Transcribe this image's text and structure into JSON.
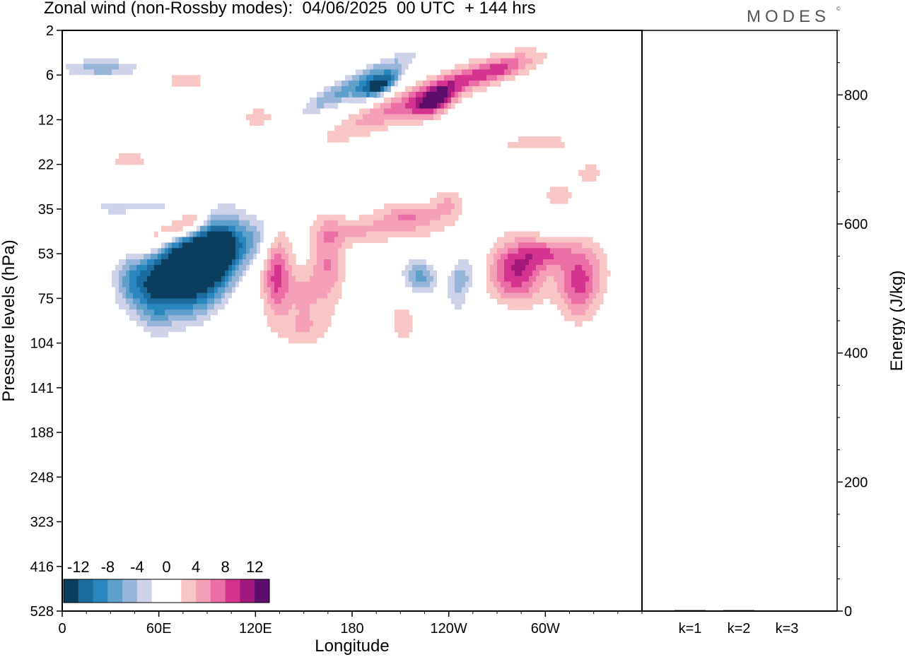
{
  "header": {
    "title": "Zonal wind (non-Rossby modes):  04/06/2025  00 UTC  + 144 hrs",
    "logo": "MODES",
    "logo_mark": "©"
  },
  "chart_data": [
    {
      "type": "heatmap",
      "title": "Zonal wind (non-Rossby modes):  04/06/2025  00 UTC  + 144 hrs",
      "xlabel": "Longitude",
      "ylabel": "Pressure levels (hPa)",
      "x_ticks": [
        "0",
        "60E",
        "120E",
        "180",
        "120W",
        "60W"
      ],
      "y_ticks": [
        "2",
        "6",
        "12",
        "22",
        "35",
        "53",
        "75",
        "104",
        "141",
        "188",
        "248",
        "323",
        "416",
        "528"
      ],
      "colorbar": {
        "labels": [
          "-12",
          "-8",
          "-4",
          "0",
          "4",
          "8",
          "12"
        ],
        "levels": [
          -14,
          -12,
          -10,
          -8,
          -6,
          -4,
          -2,
          2,
          4,
          6,
          8,
          10,
          12,
          14
        ],
        "colors": [
          "#0b3d5e",
          "#1b6b9e",
          "#2a86bf",
          "#5f9fcc",
          "#97b5d8",
          "#cfd3ea",
          "#ffffff",
          "#ffffff",
          "#f9c6c6",
          "#f59fb9",
          "#ec6ea6",
          "#d4348f",
          "#a2187d",
          "#5c0d6b"
        ]
      },
      "features": [
        {
          "lon": 87,
          "lev": 5.35,
          "rl": 25,
          "rv": 1.05,
          "tilt": 0.018,
          "amp": -15
        },
        {
          "lon": 72,
          "lev": 5.25,
          "rl": 22,
          "rv": 0.75,
          "tilt": 0.015,
          "amp": -12
        },
        {
          "lon": 44,
          "lev": 5.55,
          "rl": 14,
          "rv": 0.8,
          "tilt": 0.0,
          "amp": -8
        },
        {
          "lon": 100,
          "lev": 4.95,
          "rl": 12,
          "rv": 0.55,
          "tilt": 0.02,
          "amp": -8
        },
        {
          "lon": 120,
          "lev": 4.7,
          "rl": 10,
          "rv": 0.5,
          "tilt": 0.02,
          "amp": -5
        },
        {
          "lon": 65,
          "lev": 4.5,
          "rl": 14,
          "rv": 0.35,
          "tilt": 0.015,
          "amp": 6
        },
        {
          "lon": 80,
          "lev": 4.3,
          "rl": 10,
          "rv": 0.3,
          "tilt": 0.015,
          "amp": 9
        },
        {
          "lon": 48,
          "lev": 4.85,
          "rl": 10,
          "rv": 0.3,
          "tilt": 0.01,
          "amp": 4
        },
        {
          "lon": 57,
          "lev": 3.95,
          "rl": 25,
          "rv": 0.35,
          "tilt": 0.0,
          "amp": -4
        },
        {
          "lon": 28,
          "lev": 3.95,
          "rl": 14,
          "rv": 0.3,
          "tilt": 0.0,
          "amp": -3.5
        },
        {
          "lon": 58,
          "lev": 6.2,
          "rl": 10,
          "rv": 0.8,
          "tilt": 0.0,
          "amp": -3.5
        },
        {
          "lon": 133,
          "lev": 5.5,
          "rl": 9,
          "rv": 0.9,
          "tilt": 0.0,
          "amp": 9
        },
        {
          "lon": 165,
          "lev": 5.2,
          "rl": 10,
          "rv": 1.0,
          "tilt": 0.0,
          "amp": 6
        },
        {
          "lon": 150,
          "lev": 5.9,
          "rl": 10,
          "rv": 0.6,
          "tilt": 0.0,
          "amp": 4
        },
        {
          "lon": 183,
          "lev": 4.5,
          "rl": 25,
          "rv": 0.3,
          "tilt": 0.0,
          "amp": 4
        },
        {
          "lon": 215,
          "lev": 4.2,
          "rl": 20,
          "rv": 0.35,
          "tilt": 0.0,
          "amp": 6
        },
        {
          "lon": 240,
          "lev": 3.9,
          "rl": 10,
          "rv": 0.35,
          "tilt": 0.0,
          "amp": 4
        },
        {
          "lon": 238,
          "lev": 5.1,
          "rl": 12,
          "rv": 0.55,
          "tilt": 0.0,
          "amp": 4
        },
        {
          "lon": 212,
          "lev": 6.5,
          "rl": 10,
          "rv": 0.6,
          "tilt": 0.0,
          "amp": 3
        },
        {
          "lon": 223,
          "lev": 5.5,
          "rl": 13,
          "rv": 0.5,
          "tilt": 0.0,
          "amp": -9
        },
        {
          "lon": 248,
          "lev": 5.45,
          "rl": 10,
          "rv": 0.5,
          "tilt": 0.0,
          "amp": -7
        },
        {
          "lon": 245,
          "lev": 6.2,
          "rl": 8,
          "rv": 0.8,
          "tilt": 0.0,
          "amp": -3.5
        },
        {
          "lon": 282,
          "lev": 5.4,
          "rl": 17,
          "rv": 0.7,
          "tilt": 0.0,
          "amp": 10
        },
        {
          "lon": 322,
          "lev": 5.4,
          "rl": 15,
          "rv": 0.7,
          "tilt": 0.0,
          "amp": 7
        },
        {
          "lon": 300,
          "lev": 5.0,
          "rl": 15,
          "rv": 0.3,
          "tilt": 0.0,
          "amp": 6
        },
        {
          "lon": 320,
          "lev": 6.0,
          "rl": 12,
          "rv": 0.6,
          "tilt": 0.0,
          "amp": 4
        },
        {
          "lon": 330,
          "lev": 3.9,
          "rl": 12,
          "rv": 0.35,
          "tilt": 0.0,
          "amp": -4
        },
        {
          "lon": 328,
          "lev": 3.2,
          "rl": 10,
          "rv": 0.25,
          "tilt": 0.0,
          "amp": 3
        },
        {
          "lon": 250,
          "lev": 4.8,
          "rl": 12,
          "rv": 0.3,
          "tilt": 0.0,
          "amp": -3
        },
        {
          "lon": 183,
          "lev": 1.2,
          "rl": 40,
          "rv": 0.32,
          "tilt": 0.018,
          "amp": -9
        },
        {
          "lon": 197,
          "lev": 1.25,
          "rl": 12,
          "rv": 0.22,
          "tilt": 0.015,
          "amp": -13
        },
        {
          "lon": 220,
          "lev": 1.55,
          "rl": 50,
          "rv": 0.35,
          "tilt": 0.015,
          "amp": 7
        },
        {
          "lon": 231,
          "lev": 1.6,
          "rl": 13,
          "rv": 0.3,
          "tilt": 0.015,
          "amp": 10
        },
        {
          "lon": 270,
          "lev": 0.9,
          "rl": 25,
          "rv": 0.25,
          "tilt": 0.01,
          "amp": 7
        },
        {
          "lon": 255,
          "lev": 2.3,
          "rl": 30,
          "rv": 0.25,
          "tilt": 0.0,
          "amp": -4
        },
        {
          "lon": 290,
          "lev": 2.5,
          "rl": 30,
          "rv": 0.25,
          "tilt": 0.0,
          "amp": 3.5
        },
        {
          "lon": 25,
          "lev": 0.85,
          "rl": 30,
          "rv": 0.25,
          "tilt": 0.0,
          "amp": -7
        },
        {
          "lon": 20,
          "lev": 2.25,
          "rl": 18,
          "rv": 0.3,
          "tilt": 0.0,
          "amp": -3
        },
        {
          "lon": 78,
          "lev": 2.4,
          "rl": 25,
          "rv": 0.3,
          "tilt": 0.0,
          "amp": -3
        },
        {
          "lon": 42,
          "lev": 2.9,
          "rl": 15,
          "rv": 0.25,
          "tilt": 0.0,
          "amp": 3
        },
        {
          "lon": 122,
          "lev": 3.15,
          "rl": 25,
          "rv": 0.55,
          "tilt": 0.0,
          "amp": -3.5
        },
        {
          "lon": 125,
          "lev": 2.0,
          "rl": 20,
          "rv": 0.35,
          "tilt": 0.0,
          "amp": 3
        },
        {
          "lon": 76,
          "lev": 1.1,
          "rl": 15,
          "rv": 0.2,
          "tilt": 0.0,
          "amp": 3.5
        },
        {
          "lon": 150,
          "lev": 6.7,
          "rl": 15,
          "rv": 0.4,
          "tilt": 0.0,
          "amp": 3.5
        },
        {
          "lon": 270,
          "lev": 6.6,
          "rl": 12,
          "rv": 0.35,
          "tilt": 0.0,
          "amp": -3.5
        },
        {
          "lon": 20,
          "lev": 6.5,
          "rl": 10,
          "rv": 0.4,
          "tilt": 0.0,
          "amp": -3
        },
        {
          "lon": 310,
          "lev": 3.7,
          "rl": 15,
          "rv": 0.3,
          "tilt": 0.0,
          "amp": 3
        },
        {
          "lon": 240,
          "lev": 2.2,
          "rl": 12,
          "rv": 0.2,
          "tilt": 0.0,
          "amp": 3
        },
        {
          "lon": 330,
          "lev": 2.0,
          "rl": 15,
          "rv": 0.25,
          "tilt": 0.0,
          "amp": -3
        }
      ]
    },
    {
      "type": "bar",
      "categories": [
        "k=1",
        "k=2",
        "k=3"
      ],
      "values": [
        1.5,
        1.5,
        1.0
      ],
      "ylabel": "Energy (J/kg)",
      "ylim": [
        0,
        900
      ],
      "y_ticks": [
        "0",
        "200",
        "400",
        "600",
        "800"
      ]
    }
  ]
}
